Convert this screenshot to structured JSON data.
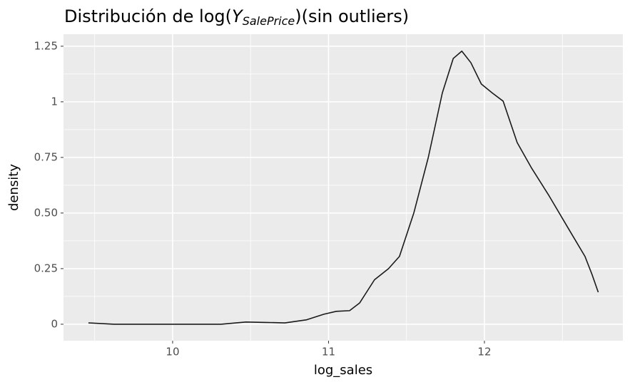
{
  "chart_data": {
    "type": "line",
    "title": {
      "before": "Distribución de log(",
      "symbol": "Y",
      "subscript": "SalePrice",
      "after": ")(sin outliers)"
    },
    "x_label": "log_sales",
    "y_label": "density",
    "x": [
      9.46,
      9.625,
      9.8,
      10.0,
      10.2,
      10.31,
      10.47,
      10.6,
      10.72,
      10.86,
      10.97,
      11.05,
      11.135,
      11.2,
      11.295,
      11.385,
      11.455,
      11.547,
      11.64,
      11.73,
      11.8,
      11.855,
      11.913,
      11.98,
      12.05,
      12.12,
      12.21,
      12.3,
      12.415,
      12.55,
      12.645,
      12.69,
      12.73
    ],
    "series": [
      {
        "color": "#1a1a1a",
        "values": [
          0.006,
          0.0,
          0.0,
          0.0,
          0.0,
          0.0,
          0.01,
          0.008,
          0.006,
          0.02,
          0.045,
          0.058,
          0.061,
          0.096,
          0.2,
          0.25,
          0.305,
          0.5,
          0.75,
          1.04,
          1.195,
          1.228,
          1.176,
          1.08,
          1.04,
          1.003,
          0.817,
          0.705,
          0.577,
          0.417,
          0.305,
          0.224,
          0.144
        ]
      }
    ],
    "xlim": [
      9.3,
      12.888
    ],
    "ylim": [
      -0.074,
      1.304
    ],
    "xticks": [
      10,
      11,
      12
    ],
    "yticks": [
      0,
      0.25,
      {
        "value": 0.5,
        "label": "0.50"
      },
      0.75,
      1,
      1.25
    ],
    "minor_xticks": [
      9.5,
      10.5,
      11.5,
      12.5
    ],
    "minor_yticks": [
      0.125,
      0.375,
      0.625,
      0.875,
      1.125
    ],
    "grid": true
  }
}
